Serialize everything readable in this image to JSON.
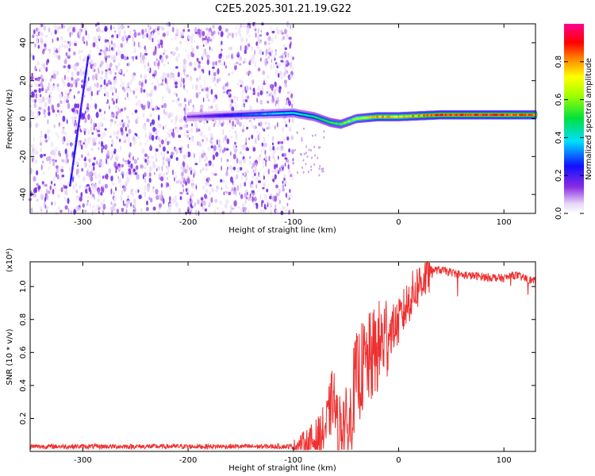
{
  "chart_data": [
    {
      "type": "heatmap",
      "title": "C2E5.2025.301.21.19.G22",
      "xlabel": "Height of straight line (km)",
      "ylabel": "Frequency (Hz)",
      "xlim": [
        -350,
        130
      ],
      "ylim": [
        -50,
        50
      ],
      "x_ticks": [
        -300,
        -200,
        -100,
        0,
        100
      ],
      "y_ticks": [
        -40,
        -20,
        0,
        20,
        40
      ],
      "colorbar": {
        "label": "Normalized spectral amplitude",
        "range": [
          0.0,
          1.0
        ],
        "ticks": [
          0.0,
          0.2,
          0.4,
          0.6,
          0.8
        ],
        "tick_labels": [
          "0.0",
          "0.2",
          "0.4",
          "0.6",
          "0.8"
        ],
        "colormap": "rainbow (white-purple-blue-cyan-green-yellow-red-magenta)"
      },
      "ridge": {
        "description": "dominant frequency trace",
        "x": [
          -200,
          -150,
          -100,
          -80,
          -65,
          -55,
          -40,
          -20,
          0,
          40,
          100,
          130
        ],
        "y": [
          1,
          2,
          3,
          1,
          -2,
          -3,
          0,
          1,
          1,
          2,
          2,
          2
        ],
        "amplitude": [
          0.15,
          0.3,
          0.45,
          0.5,
          0.55,
          0.6,
          0.7,
          0.85,
          0.8,
          0.95,
          0.95,
          0.9
        ]
      },
      "streak": {
        "description": "diagonal streak in noise region",
        "x": [
          -312,
          -295
        ],
        "y": [
          -35,
          32
        ]
      },
      "noise_region_xlim": [
        -350,
        -100
      ]
    },
    {
      "type": "line",
      "xlabel": "Height of straight line (km)",
      "ylabel": "SNR (10 * v/v)",
      "scale_label": "(x10⁴)",
      "xlim": [
        -350,
        130
      ],
      "ylim": [
        0.0,
        1.15
      ],
      "x_ticks": [
        -300,
        -200,
        -100,
        0,
        100
      ],
      "y_ticks": [
        0.2,
        0.4,
        0.6,
        0.8,
        1.0
      ],
      "y_tick_labels": [
        "0.2",
        "0.4",
        "0.6",
        "0.8",
        "1.0"
      ],
      "color": "#ee3030",
      "series": [
        {
          "name": "SNR",
          "x": [
            -350,
            -100,
            -85,
            -75,
            -68,
            -62,
            -58,
            -52,
            -48,
            -42,
            -35,
            -28,
            -20,
            -10,
            0,
            10,
            20,
            30,
            40,
            60,
            80,
            100,
            110,
            130
          ],
          "values": [
            0.03,
            0.03,
            0.05,
            0.08,
            0.16,
            0.35,
            0.12,
            0.2,
            0.08,
            0.4,
            0.5,
            0.55,
            0.62,
            0.72,
            0.78,
            0.92,
            1.02,
            1.1,
            1.1,
            1.07,
            1.06,
            1.05,
            1.07,
            1.03
          ]
        }
      ]
    }
  ]
}
